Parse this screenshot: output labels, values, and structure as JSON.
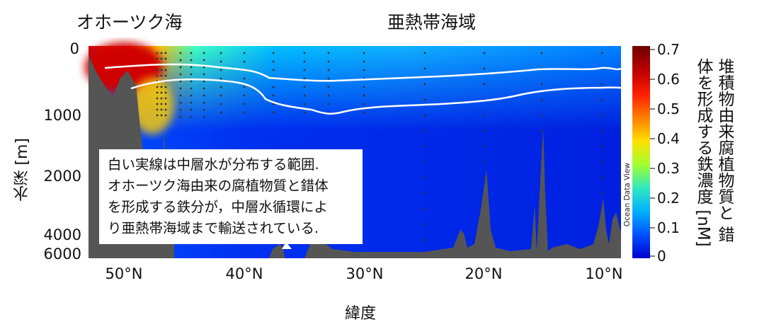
{
  "regions": {
    "left": "オホーツク海",
    "right": "亜熱帯海域"
  },
  "ylabel": "水深 [m]",
  "xlabel": "緯度",
  "yticks": [
    "0",
    "1000",
    "2000",
    "4000",
    "6000"
  ],
  "xticks": [
    "50°N",
    "40°N",
    "30°N",
    "20°N",
    "10°N"
  ],
  "colorbar": {
    "ticks": [
      "0.7",
      "0.6",
      "0.5",
      "0.4",
      "0.3",
      "0.2",
      "0.1",
      "0"
    ],
    "label_lines": [
      "堆積物由来腐植物質と",
      "錯体を形成する鉄濃度",
      "[nM]"
    ],
    "colors": [
      "#0000d0",
      "#0050ff",
      "#00b0ff",
      "#30e8c0",
      "#a0ff30",
      "#ffe000",
      "#ff8000",
      "#ff2000",
      "#c00000",
      "#700000"
    ]
  },
  "note_lines": [
    "白い実線は中層水が分布する範囲.",
    "オホーツク海由来の腐植物質と錯体",
    "を形成する鉄分が，中層水循環によ",
    "り亜熱帯海域まで輸送されている."
  ],
  "watermark": "Ocean Data View",
  "chart_data": {
    "type": "heatmap",
    "xlabel": "緯度",
    "ylabel": "水深 [m]",
    "x_ticks": [
      "50°N",
      "40°N",
      "30°N",
      "20°N",
      "10°N"
    ],
    "y_ticks": [
      "0",
      "1000",
      "2000",
      "4000",
      "6000"
    ],
    "x_range_deg_N": [
      53,
      9
    ],
    "y_range_m": [
      0,
      6000
    ],
    "colorbar_range_nM": [
      0,
      0.7
    ],
    "colorbar_label": "堆積物由来腐植物質と錯体を形成する鉄濃度 [nM]",
    "intermediate_water_upper_m": [
      [
        52,
        280
      ],
      [
        48,
        280
      ],
      [
        45,
        270
      ],
      [
        42,
        290
      ],
      [
        40,
        330
      ],
      [
        38,
        490
      ],
      [
        35,
        500
      ],
      [
        33,
        560
      ],
      [
        31,
        560
      ],
      [
        28,
        520
      ],
      [
        25,
        500
      ],
      [
        20,
        490
      ],
      [
        16,
        420
      ],
      [
        12,
        390
      ],
      [
        10,
        330
      ],
      [
        9,
        370
      ]
    ],
    "intermediate_water_lower_m": [
      [
        52,
        580
      ],
      [
        48,
        540
      ],
      [
        45,
        500
      ],
      [
        42,
        510
      ],
      [
        40,
        570
      ],
      [
        38,
        760
      ],
      [
        35,
        830
      ],
      [
        33,
        940
      ],
      [
        31,
        930
      ],
      [
        28,
        830
      ],
      [
        25,
        790
      ],
      [
        20,
        760
      ],
      [
        16,
        650
      ],
      [
        12,
        610
      ],
      [
        10,
        590
      ],
      [
        9,
        590
      ]
    ],
    "high_concentration_nM": [
      [
        52,
        0.7
      ],
      [
        48,
        0.55
      ],
      [
        45,
        0.4
      ],
      [
        40,
        0.25
      ],
      [
        35,
        0.2
      ],
      [
        30,
        0.2
      ],
      [
        20,
        0.15
      ],
      [
        10,
        0.1
      ]
    ]
  }
}
